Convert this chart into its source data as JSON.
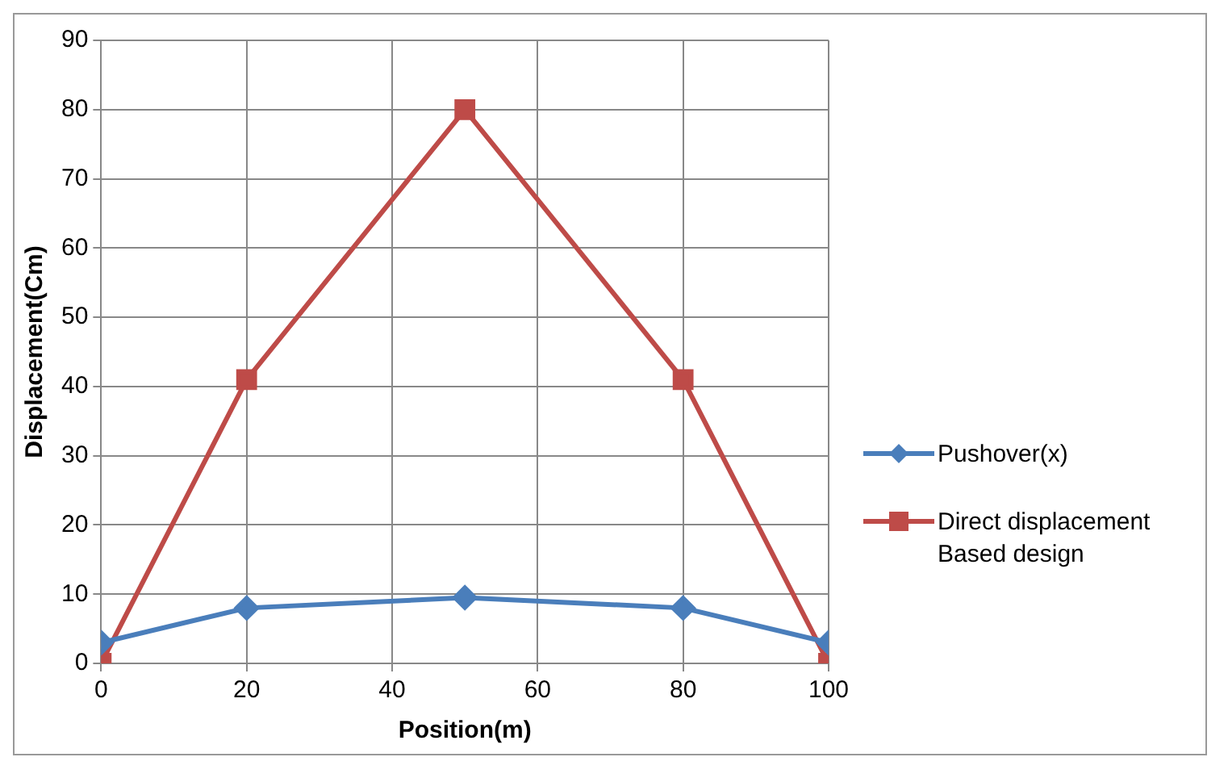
{
  "chart_data": {
    "type": "line",
    "xlabel": "Position(m)",
    "ylabel": "Displacement(Cm)",
    "x": [
      0,
      20,
      50,
      80,
      100
    ],
    "series": [
      {
        "name": "Pushover(x)",
        "color": "#4a7ebb",
        "marker": "diamond",
        "values": [
          3,
          8,
          9.5,
          8,
          3
        ]
      },
      {
        "name": "Direct displacement Based design",
        "color": "#be4b48",
        "marker": "square",
        "values": [
          0,
          41,
          80,
          41,
          0
        ]
      }
    ],
    "xlim": [
      0,
      100
    ],
    "xticks": [
      0,
      20,
      40,
      60,
      80,
      100
    ],
    "ylim": [
      0,
      90
    ],
    "yticks": [
      0,
      10,
      20,
      30,
      40,
      50,
      60,
      70,
      80,
      90
    ],
    "grid": true,
    "legend": "right",
    "line_style": "solid"
  }
}
